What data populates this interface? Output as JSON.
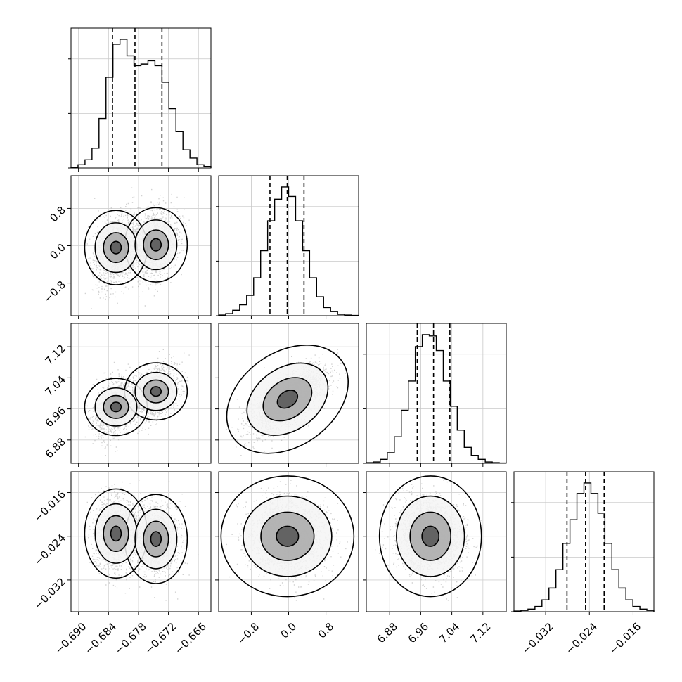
{
  "chart_data": {
    "type": "corner",
    "title": "",
    "grid": true,
    "parameters": [
      {
        "name": "",
        "range": [
          -0.6915,
          -0.6635
        ],
        "ticks": [
          -0.69,
          -0.684,
          -0.678,
          -0.672,
          -0.666
        ],
        "tick_labels": [
          "−0.690",
          "−0.684",
          "−0.678",
          "−0.672",
          "−0.666"
        ],
        "quantiles": [
          -0.6832,
          -0.6787,
          -0.6733
        ]
      },
      {
        "name": "",
        "range": [
          -1.5,
          1.5
        ],
        "ticks": [
          -0.8,
          0.0,
          0.8
        ],
        "tick_labels": [
          "−0.8",
          "0.0",
          "0.8"
        ],
        "quantiles": [
          -0.4,
          -0.03,
          0.33
        ]
      },
      {
        "name": "",
        "range": [
          6.82,
          7.18
        ],
        "ticks": [
          6.88,
          6.96,
          7.04,
          7.12
        ],
        "tick_labels": [
          "6.88",
          "6.96",
          "7.04",
          "7.12"
        ],
        "quantiles": [
          6.951,
          6.993,
          7.035
        ]
      },
      {
        "name": "",
        "range": [
          -0.0378,
          -0.0122
        ],
        "ticks": [
          -0.032,
          -0.024,
          -0.016
        ],
        "tick_labels": [
          "−0.032",
          "−0.024",
          "−0.016"
        ],
        "quantiles": [
          -0.0281,
          -0.0247,
          -0.0213
        ]
      }
    ],
    "histograms": [
      {
        "bin_range": [
          -0.6915,
          -0.6635
        ],
        "values": [
          0.5,
          2,
          5,
          12,
          30,
          55,
          75,
          78,
          68,
          62,
          63,
          65,
          62,
          52,
          36,
          22,
          11,
          6,
          2,
          1
        ]
      },
      {
        "bin_range": [
          -1.5,
          1.5
        ],
        "values": [
          0.5,
          1.5,
          4,
          8,
          15,
          28,
          48,
          70,
          86,
          95,
          88,
          70,
          48,
          28,
          14,
          6,
          3,
          1,
          0.5,
          0.2
        ]
      },
      {
        "bin_range": [
          6.82,
          7.18
        ],
        "values": [
          0.5,
          1,
          3,
          8,
          20,
          40,
          62,
          88,
          97,
          96,
          85,
          62,
          43,
          25,
          12,
          6,
          3,
          1,
          0.5,
          0.2
        ]
      },
      {
        "bin_range": [
          -0.0378,
          -0.0122
        ],
        "values": [
          0.5,
          1,
          2,
          4,
          9,
          18,
          32,
          52,
          70,
          90,
          98,
          90,
          75,
          52,
          32,
          18,
          9,
          4,
          2,
          1
        ]
      }
    ]
  }
}
